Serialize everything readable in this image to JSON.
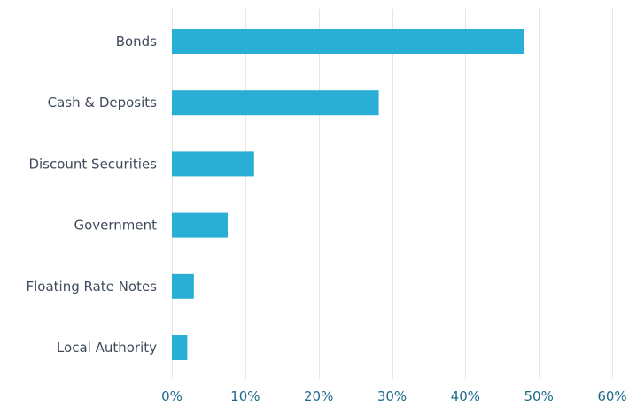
{
  "chart_data": {
    "type": "bar",
    "orientation": "horizontal",
    "categories": [
      "Bonds",
      "Cash & Deposits",
      "Discount Securities",
      "Government",
      "Floating Rate Notes",
      "Local Authority"
    ],
    "values": [
      48.0,
      28.2,
      11.2,
      7.6,
      3.0,
      2.1
    ],
    "value_unit": "%",
    "xlim": [
      0,
      60
    ],
    "xticks": [
      0,
      10,
      20,
      30,
      40,
      50,
      60
    ],
    "xtick_labels": [
      "0%",
      "10%",
      "20%",
      "30%",
      "40%",
      "50%",
      "60%"
    ],
    "grid": "vertical",
    "legend": "none",
    "colors": {
      "bar": "#29afd6",
      "category_text": "#3f4a5a",
      "tick_text": "#1d6a8a",
      "grid": "#e6e6e6"
    }
  }
}
